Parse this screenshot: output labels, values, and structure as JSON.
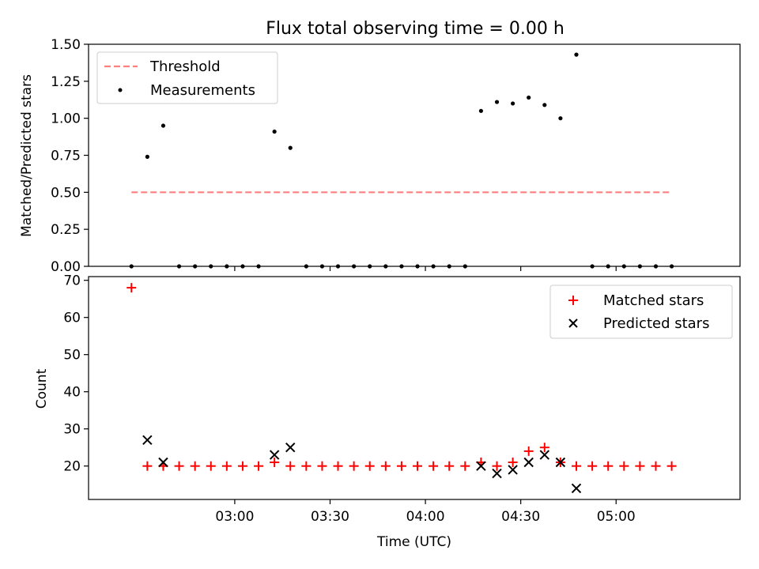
{
  "chart_data": [
    {
      "type": "scatter",
      "title": "Flux total observing time = 0.00 h",
      "xlabel": "",
      "ylabel": "Matched/Predicted stars",
      "xlim_minutes": [
        134,
        339
      ],
      "ylim": [
        0,
        1.5
      ],
      "yticks": [
        0,
        0.25,
        0.5,
        0.75,
        1.0,
        1.25,
        1.5
      ],
      "ytick_labels": [
        "0.00",
        "0.25",
        "0.50",
        "0.75",
        "1.00",
        "1.25",
        "1.50"
      ],
      "legend_position": "upper-left",
      "series": [
        {
          "name": "Threshold",
          "kind": "line",
          "style": "dashed",
          "color": "#ff7f7f",
          "x_minutes": [
            147.5,
            317.5
          ],
          "y": [
            0.5,
            0.5
          ]
        },
        {
          "name": "Measurements",
          "kind": "scatter",
          "marker": "dot",
          "color": "#000000",
          "x_minutes": [
            147.5,
            152.5,
            157.5,
            162.5,
            167.5,
            172.5,
            177.5,
            182.5,
            187.5,
            192.5,
            197.5,
            202.5,
            207.5,
            212.5,
            217.5,
            222.5,
            227.5,
            232.5,
            237.5,
            242.5,
            247.5,
            252.5,
            257.5,
            262.5,
            267.5,
            272.5,
            277.5,
            282.5,
            287.5,
            292.5,
            297.5,
            302.5,
            307.5,
            312.5,
            317.5
          ],
          "y": [
            0,
            0.74,
            0.95,
            0,
            0,
            0,
            0,
            0,
            0,
            0.91,
            0.8,
            0,
            0,
            0,
            0,
            0,
            0,
            0,
            0,
            0,
            0,
            0,
            1.05,
            1.11,
            1.1,
            1.14,
            1.09,
            1.0,
            1.43,
            0,
            0,
            0,
            0,
            0,
            0
          ]
        }
      ]
    },
    {
      "type": "scatter",
      "title": "",
      "xlabel": "Time (UTC)",
      "ylabel": "Count",
      "xlim_minutes": [
        134,
        339
      ],
      "ylim": [
        11,
        71
      ],
      "yticks": [
        20,
        30,
        40,
        50,
        60,
        70
      ],
      "ytick_labels": [
        "20",
        "30",
        "40",
        "50",
        "60",
        "70"
      ],
      "xticks_minutes": [
        180,
        210,
        240,
        270,
        300
      ],
      "xtick_labels": [
        "03:00",
        "03:30",
        "04:00",
        "04:30",
        "05:00"
      ],
      "legend_position": "upper-right",
      "series": [
        {
          "name": "Matched stars",
          "kind": "scatter",
          "marker": "plus",
          "color": "#ff0000",
          "x_minutes": [
            147.5,
            152.5,
            157.5,
            162.5,
            167.5,
            172.5,
            177.5,
            182.5,
            187.5,
            192.5,
            197.5,
            202.5,
            207.5,
            212.5,
            217.5,
            222.5,
            227.5,
            232.5,
            237.5,
            242.5,
            247.5,
            252.5,
            257.5,
            262.5,
            267.5,
            272.5,
            277.5,
            282.5,
            287.5,
            292.5,
            297.5,
            302.5,
            307.5,
            312.5,
            317.5
          ],
          "y": [
            68,
            20,
            20,
            20,
            20,
            20,
            20,
            20,
            20,
            21,
            20,
            20,
            20,
            20,
            20,
            20,
            20,
            20,
            20,
            20,
            20,
            20,
            21,
            20,
            21,
            24,
            25,
            21,
            20,
            20,
            20,
            20,
            20,
            20,
            20
          ]
        },
        {
          "name": "Predicted stars",
          "kind": "scatter",
          "marker": "x",
          "color": "#000000",
          "x_minutes": [
            152.5,
            157.5,
            192.5,
            197.5,
            257.5,
            262.5,
            267.5,
            272.5,
            277.5,
            282.5,
            287.5
          ],
          "y": [
            27,
            21,
            23,
            25,
            20,
            18,
            19,
            21,
            23,
            21,
            14
          ]
        }
      ]
    }
  ]
}
